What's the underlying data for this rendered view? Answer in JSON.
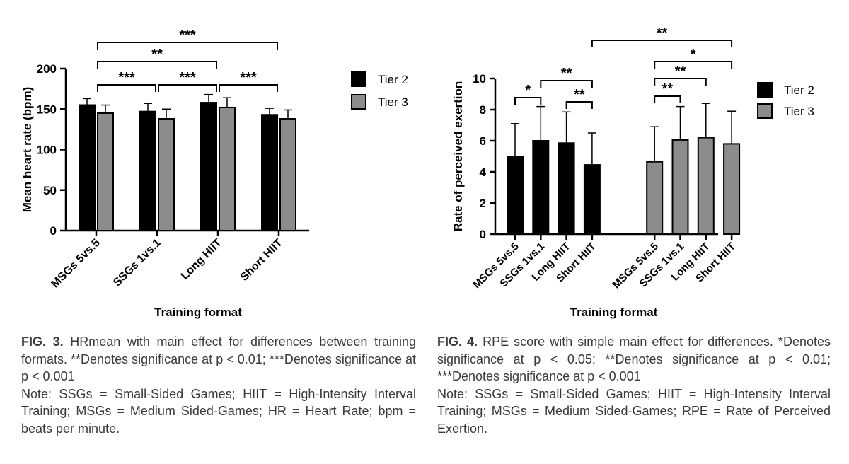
{
  "figure3": {
    "chart_data": {
      "type": "bar",
      "categories": [
        "MSGs 5vs.5",
        "SSGs 1vs.1",
        "Long HIIT",
        "Short HIIT"
      ],
      "series": [
        {
          "name": "Tier 2",
          "color": "#000000",
          "values": [
            155,
            147,
            158,
            143
          ],
          "errors": [
            8,
            10,
            10,
            8
          ]
        },
        {
          "name": "Tier 3",
          "color": "#8c8c8c",
          "values": [
            145,
            138,
            152,
            138
          ],
          "errors": [
            10,
            12,
            12,
            11
          ]
        }
      ],
      "ylim": [
        0,
        200
      ],
      "yticks": [
        0,
        50,
        100,
        150,
        200
      ],
      "xlabel": "Training format",
      "ylabel": "Mean heart rate (bpm)",
      "legend_position": "right",
      "brackets": [
        {
          "from": 0,
          "to": 3,
          "label": "***"
        },
        {
          "from": 0,
          "to": 2,
          "label": "**"
        },
        {
          "from": 0,
          "to": 1,
          "label": "***"
        },
        {
          "from": 1,
          "to": 2,
          "label": "***"
        },
        {
          "from": 2,
          "to": 3,
          "label": "***"
        }
      ]
    },
    "caption": {
      "label": "FIG. 3.",
      "text": "HRmean with main effect for differences between training formats. **Denotes significance at p < 0.01; ***Denotes significance at p < 0.001",
      "note": "Note: SSGs = Small-Sided Games; HIIT = High-Intensity Interval Training; MSGs = Medium Sided-Games; HR = Heart Rate; bpm = beats per minute."
    }
  },
  "figure4": {
    "chart_data": {
      "type": "bar",
      "categories": [
        "MSGs 5vs.5",
        "SSGs 1vs.1",
        "Long HIIT",
        "Short HIIT",
        "MSGs 5vs.5",
        "SSGs 1vs.1",
        "Long HIIT",
        "Short HIIT"
      ],
      "bar_groups": [
        "Tier 2",
        "Tier 2",
        "Tier 2",
        "Tier 2",
        "Tier 3",
        "Tier 3",
        "Tier 3",
        "Tier 3"
      ],
      "values": [
        5.0,
        6.0,
        5.85,
        4.45,
        4.65,
        6.05,
        6.2,
        5.8
      ],
      "errors": [
        2.1,
        2.2,
        2.0,
        2.05,
        2.25,
        2.15,
        2.2,
        2.1
      ],
      "series": [
        {
          "name": "Tier 2",
          "color": "#000000"
        },
        {
          "name": "Tier 3",
          "color": "#8c8c8c"
        }
      ],
      "ylim": [
        0,
        10
      ],
      "yticks": [
        0,
        2,
        4,
        6,
        8,
        10
      ],
      "xlabel": "Training format",
      "ylabel": "Rate of perceived exertion",
      "legend_position": "right",
      "brackets": [
        {
          "from": 0,
          "to": 1,
          "label": "*"
        },
        {
          "from": 1,
          "to": 3,
          "label": "**"
        },
        {
          "from": 2,
          "to": 3,
          "label": "**"
        },
        {
          "from": 4,
          "to": 5,
          "label": "**"
        },
        {
          "from": 4,
          "to": 6,
          "label": "**"
        },
        {
          "from": 4,
          "to": 7,
          "label": "*"
        },
        {
          "from": 3,
          "to": 7,
          "label": "**"
        }
      ]
    },
    "caption": {
      "label": "FIG. 4.",
      "text": "RPE score with simple main effect for differences. *Denotes significance at p < 0.05; **Denotes significance at p < 0.01; ***Denotes significance at p < 0.001",
      "note": "Note: SSGs = Small-Sided Games; HIIT = High-Intensity Interval Training; MSGs = Medium Sided-Games; RPE = Rate of Perceived Exertion."
    }
  }
}
